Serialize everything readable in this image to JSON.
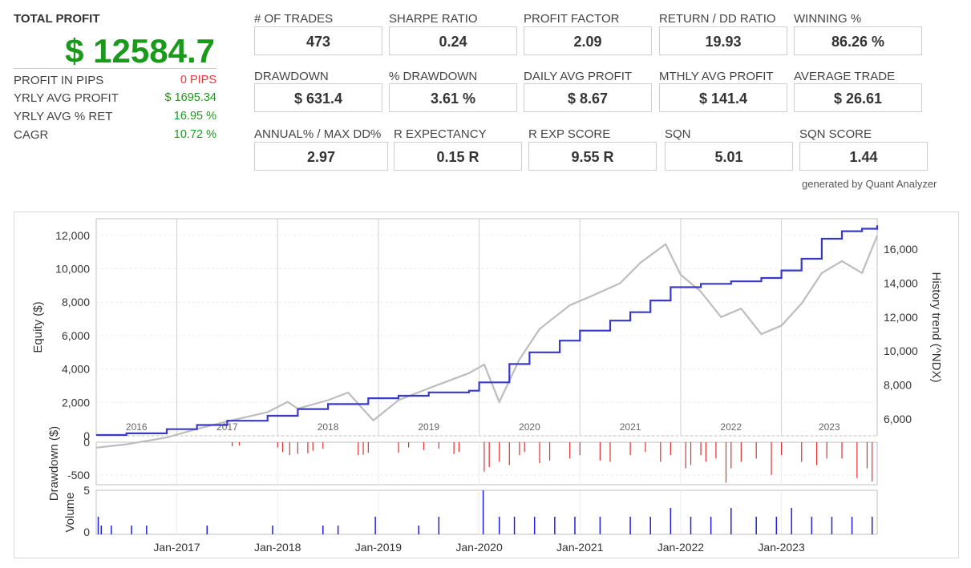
{
  "summary": {
    "title": "TOTAL PROFIT",
    "total_profit": "$ 12584.7",
    "rows": [
      {
        "label": "PROFIT IN PIPS",
        "value": "0 PIPS",
        "color": "#e23a3a"
      },
      {
        "label": "YRLY AVG PROFIT",
        "value": "$ 1695.34",
        "color": "#1a9a1a"
      },
      {
        "label": "YRLY AVG % RET",
        "value": "16.95 %",
        "color": "#1a9a1a"
      },
      {
        "label": "CAGR",
        "value": "10.72 %",
        "color": "#1a9a1a"
      }
    ]
  },
  "metrics": [
    {
      "label": "# OF TRADES",
      "value": "473"
    },
    {
      "label": "SHARPE RATIO",
      "value": "0.24"
    },
    {
      "label": "PROFIT FACTOR",
      "value": "2.09"
    },
    {
      "label": "RETURN / DD RATIO",
      "value": "19.93"
    },
    {
      "label": "WINNING %",
      "value": "86.26 %"
    },
    {
      "label": "DRAWDOWN",
      "value": "$ 631.4"
    },
    {
      "label": "% DRAWDOWN",
      "value": "3.61 %"
    },
    {
      "label": "DAILY AVG PROFIT",
      "value": "$ 8.67"
    },
    {
      "label": "MTHLY AVG PROFIT",
      "value": "$ 141.4"
    },
    {
      "label": "AVERAGE TRADE",
      "value": "$ 26.61"
    },
    {
      "label": "ANNUAL% / MAX DD%",
      "value": "2.97"
    },
    {
      "label": "R EXPECTANCY",
      "value": "0.15 R"
    },
    {
      "label": "R EXP SCORE",
      "value": "9.55 R"
    },
    {
      "label": "SQN",
      "value": "5.01"
    },
    {
      "label": "SQN SCORE",
      "value": "1.44"
    }
  ],
  "generated_by": "generated by Quant Analyzer",
  "colors": {
    "equity": "#3a3ac8",
    "history": "#bdbdbd",
    "drawdown": "#e03030",
    "volume": "#2020e0",
    "profit": "#1a9a1a"
  },
  "chart_data": [
    {
      "type": "line",
      "ylabel": "Equity ($)",
      "y2label": "History trend (^NDX)",
      "ylim": [
        0,
        13000
      ],
      "y2lim": [
        5000,
        17800
      ],
      "yticks": [
        "0",
        "2,000",
        "4,000",
        "6,000",
        "8,000",
        "10,000",
        "12,000"
      ],
      "y2ticks": [
        "6,000",
        "8,000",
        "10,000",
        "12,000",
        "14,000",
        "16,000"
      ],
      "x_range": [
        2016.2,
        2023.95
      ],
      "year_labels": [
        "2016",
        "2017",
        "2018",
        "2019",
        "2020",
        "2021",
        "2022",
        "2023"
      ],
      "series": [
        {
          "role": "equity",
          "x": [
            2016.2,
            2016.5,
            2016.9,
            2017.2,
            2017.5,
            2017.9,
            2018.2,
            2018.5,
            2018.9,
            2019.2,
            2019.5,
            2019.9,
            2020.0,
            2020.3,
            2020.5,
            2020.8,
            2021.0,
            2021.3,
            2021.5,
            2021.7,
            2021.9,
            2022.2,
            2022.5,
            2022.8,
            2023.0,
            2023.2,
            2023.4,
            2023.6,
            2023.8,
            2023.95
          ],
          "y": [
            50,
            150,
            400,
            650,
            900,
            1200,
            1600,
            1900,
            2250,
            2400,
            2600,
            2700,
            3200,
            4300,
            5000,
            5700,
            6300,
            6900,
            7400,
            8100,
            8900,
            9100,
            9250,
            9450,
            9900,
            10600,
            11800,
            12250,
            12400,
            12600
          ]
        },
        {
          "role": "history",
          "x": [
            2016.2,
            2016.5,
            2016.9,
            2017.2,
            2017.5,
            2017.9,
            2018.1,
            2018.2,
            2018.5,
            2018.7,
            2018.95,
            2019.2,
            2019.5,
            2019.9,
            2020.05,
            2020.2,
            2020.4,
            2020.6,
            2020.9,
            2021.1,
            2021.4,
            2021.6,
            2021.85,
            2022.0,
            2022.2,
            2022.4,
            2022.6,
            2022.8,
            2023.0,
            2023.2,
            2023.4,
            2023.6,
            2023.8,
            2023.95
          ],
          "y": [
            4300,
            4500,
            4900,
            5400,
            5850,
            6400,
            7000,
            6600,
            7100,
            7550,
            5900,
            7100,
            7800,
            8700,
            9200,
            7000,
            9500,
            11300,
            12700,
            13200,
            14000,
            15200,
            16300,
            14500,
            13500,
            12000,
            12500,
            11000,
            11500,
            12800,
            14600,
            15300,
            14600,
            16800
          ]
        }
      ]
    },
    {
      "type": "bar",
      "ylabel": "Drawdown ($)",
      "ylim": [
        -650,
        0
      ],
      "yticks": [
        "0",
        "-500"
      ],
      "x": [
        2017.55,
        2017.62,
        2018.0,
        2018.05,
        2018.12,
        2018.2,
        2018.3,
        2018.35,
        2018.45,
        2018.8,
        2018.85,
        2018.9,
        2019.2,
        2019.3,
        2019.45,
        2019.6,
        2019.75,
        2019.8,
        2020.05,
        2020.1,
        2020.2,
        2020.3,
        2020.4,
        2020.45,
        2020.6,
        2020.7,
        2020.9,
        2021.0,
        2021.2,
        2021.3,
        2021.5,
        2021.65,
        2021.8,
        2021.9,
        2022.05,
        2022.1,
        2022.2,
        2022.25,
        2022.35,
        2022.45,
        2022.5,
        2022.6,
        2022.75,
        2022.9,
        2023.0,
        2023.2,
        2023.35,
        2023.45,
        2023.6,
        2023.75,
        2023.85,
        2023.9
      ],
      "values": [
        -60,
        -50,
        -80,
        -150,
        -200,
        -180,
        -170,
        -130,
        -100,
        -200,
        -190,
        -160,
        -160,
        -80,
        -120,
        -100,
        -180,
        -150,
        -450,
        -380,
        -300,
        -350,
        -200,
        -150,
        -320,
        -280,
        -250,
        -200,
        -280,
        -300,
        -200,
        -150,
        -300,
        -200,
        -400,
        -350,
        -200,
        -300,
        -250,
        -620,
        -400,
        -300,
        -250,
        -500,
        -200,
        -300,
        -350,
        -250,
        -250,
        -550,
        -400,
        -600
      ]
    },
    {
      "type": "bar",
      "ylabel": "Volume",
      "ylim": [
        0,
        5
      ],
      "yticks": [
        "5",
        "0"
      ],
      "xlabels": [
        "Jan-2017",
        "Jan-2018",
        "Jan-2019",
        "Jan-2020",
        "Jan-2021",
        "Jan-2022",
        "Jan-2023"
      ],
      "x": [
        2016.22,
        2016.25,
        2016.35,
        2016.55,
        2016.7,
        2017.3,
        2017.95,
        2018.45,
        2018.6,
        2018.97,
        2019.4,
        2019.6,
        2020.04,
        2020.2,
        2020.35,
        2020.55,
        2020.75,
        2020.95,
        2021.2,
        2021.5,
        2021.7,
        2021.9,
        2022.1,
        2022.3,
        2022.5,
        2022.75,
        2022.95,
        2023.1,
        2023.3,
        2023.5,
        2023.7,
        2023.9
      ],
      "values": [
        2,
        1,
        1,
        1,
        1,
        1,
        1,
        1,
        1,
        2,
        1,
        2,
        5,
        2,
        2,
        2,
        2,
        2,
        2,
        2,
        2,
        3,
        2,
        2,
        3,
        2,
        2,
        3,
        2,
        2,
        2,
        2
      ]
    }
  ]
}
